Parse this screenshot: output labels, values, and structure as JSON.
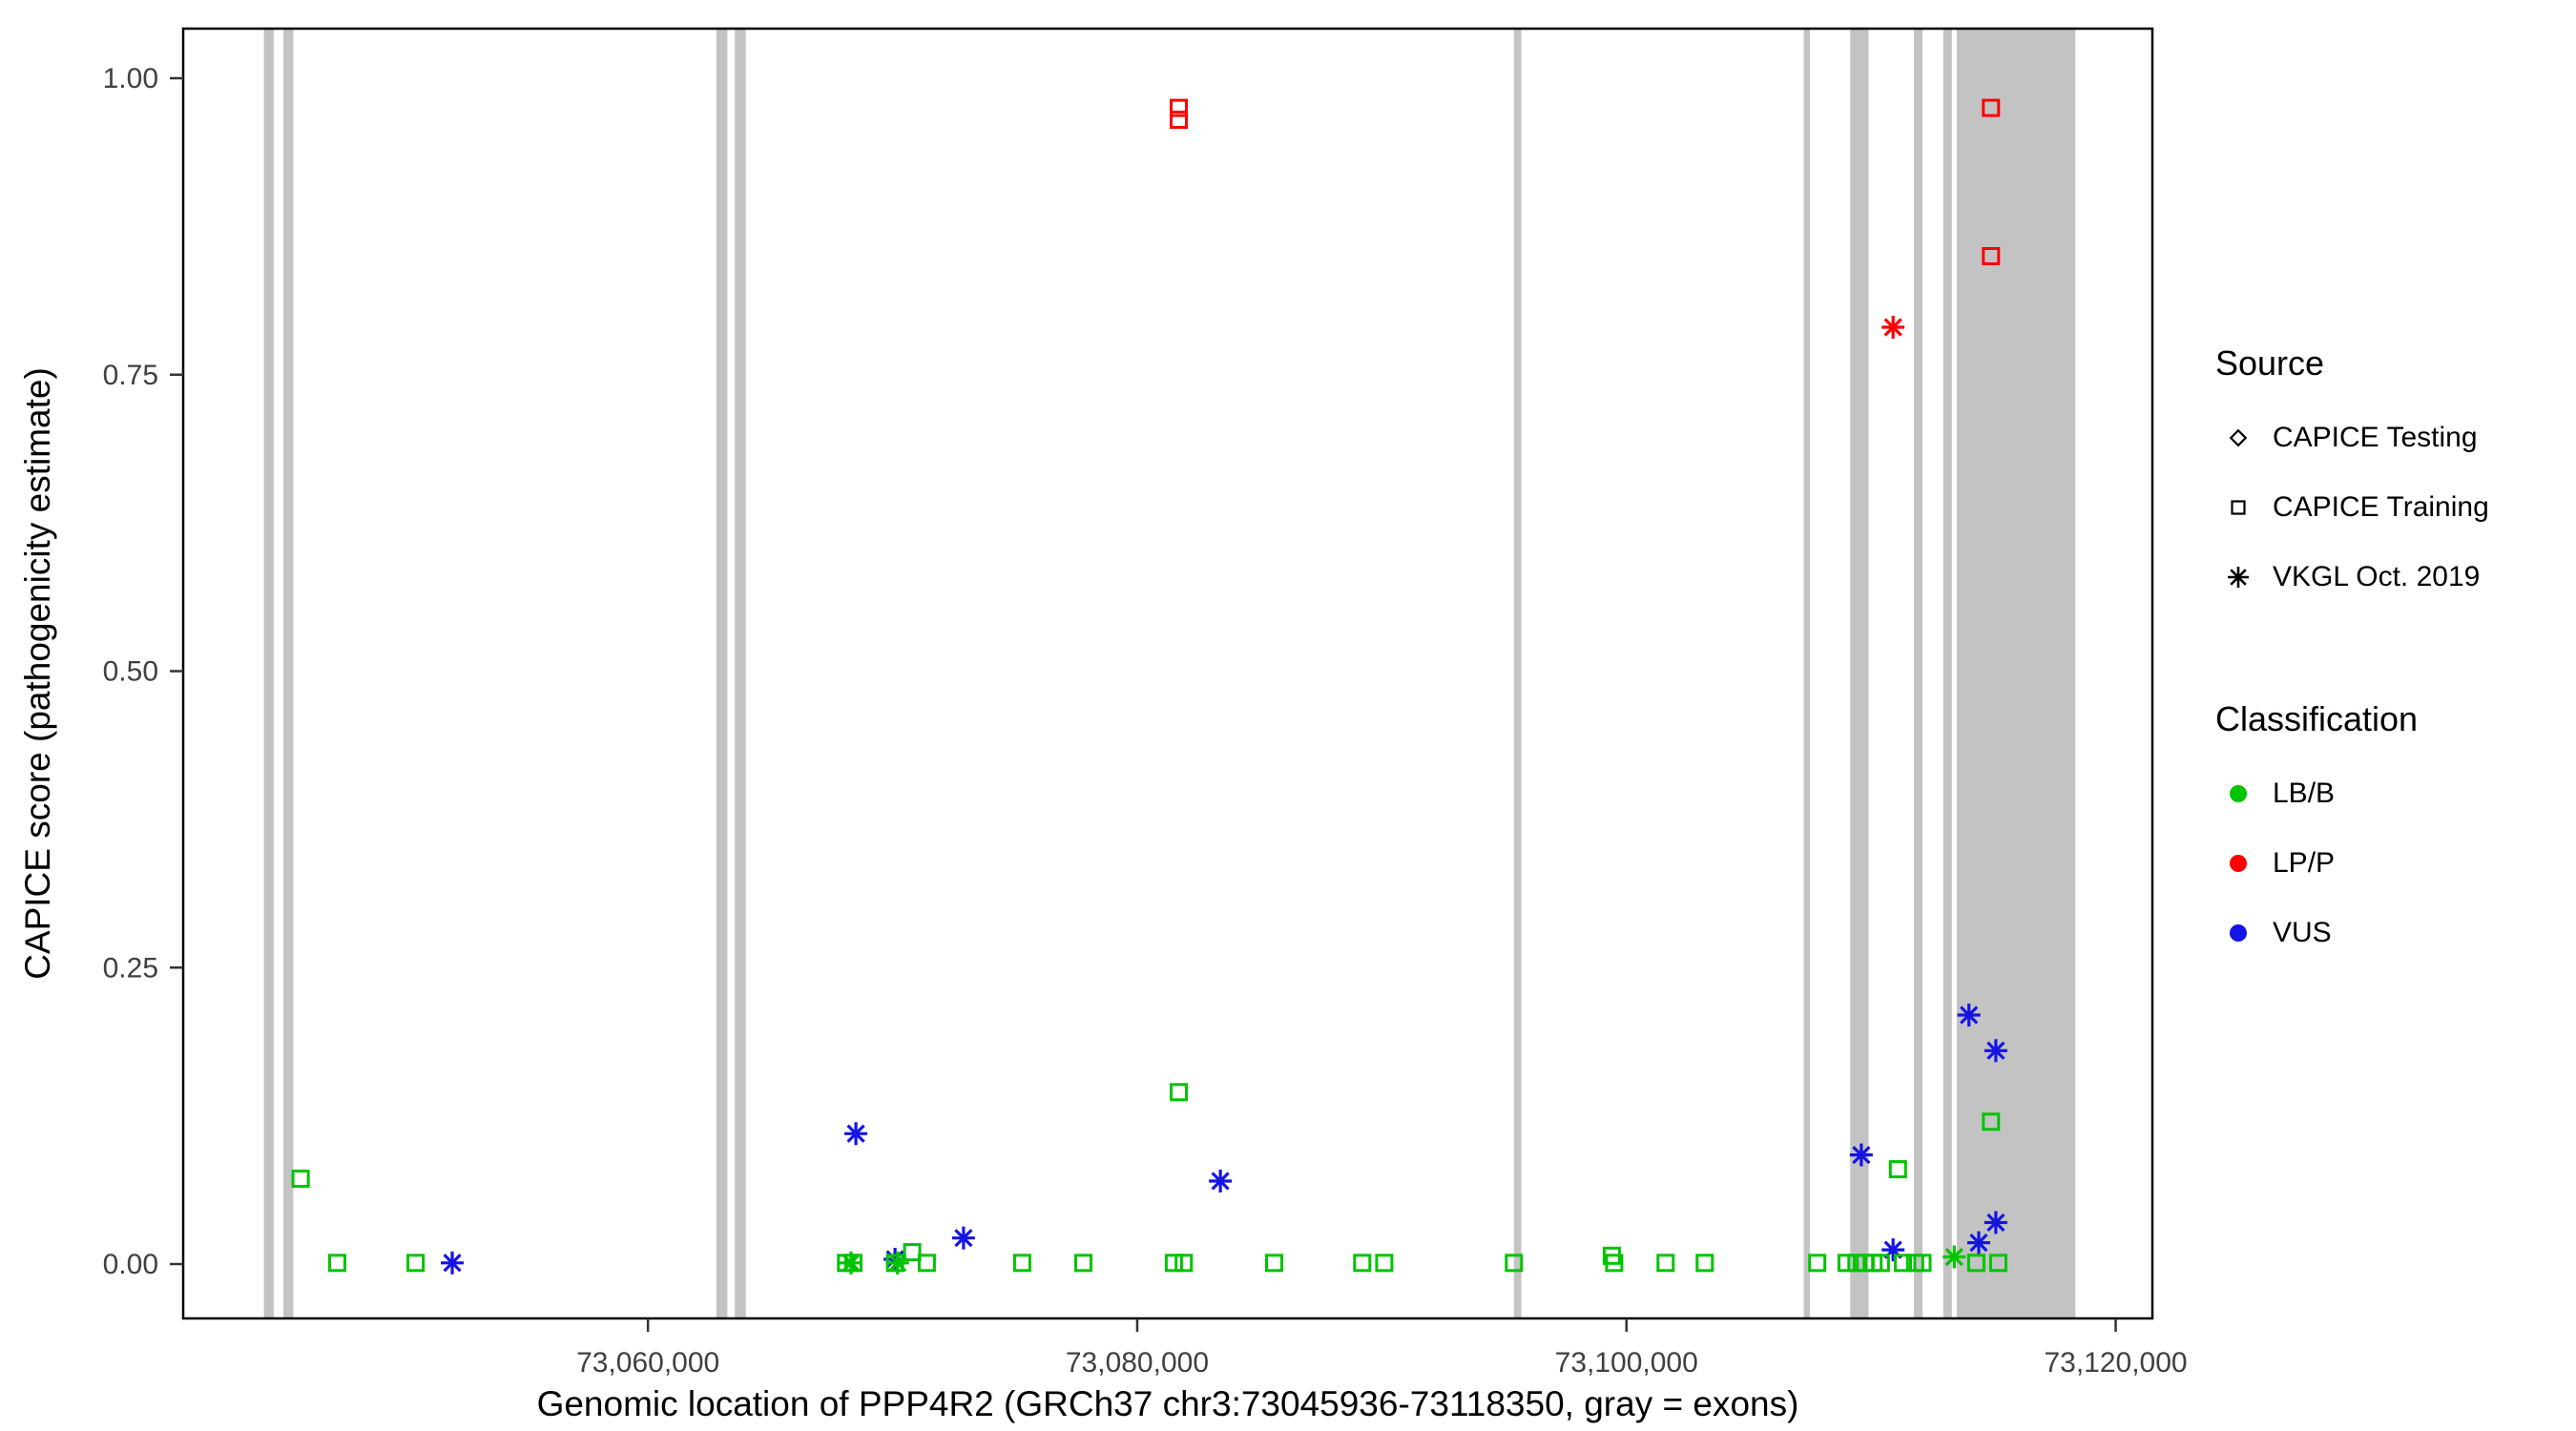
{
  "chart_data": {
    "type": "scatter",
    "title": "",
    "xlabel": "Genomic location of PPP4R2 (GRCh37 chr3:73045936-73118350, gray = exons)",
    "ylabel": "CAPICE score (pathogenicity estimate)",
    "xlim": [
      73041000,
      73121500
    ],
    "ylim": [
      0,
      1
    ],
    "grid": false,
    "panel_background": "#ffffff",
    "panel_border_color": "#000000",
    "exon_color": "#c3c3c3",
    "tick_label_color": "#404040",
    "xticks": {
      "values": [
        73060000,
        73080000,
        73100000,
        73120000
      ],
      "labels": [
        "73,060,000",
        "73,080,000",
        "73,100,000",
        "73,120,000"
      ]
    },
    "yticks": {
      "values": [
        0,
        0.25,
        0.5,
        0.75,
        1.0
      ],
      "labels": [
        "0.00",
        "0.25",
        "0.50",
        "0.75",
        "1.00"
      ]
    },
    "colors": {
      "LB/B": "#00c400",
      "LP/P": "#ff0000",
      "VUS": "#1414e6"
    },
    "exons": [
      [
        73044300,
        73044700
      ],
      [
        73045100,
        73045500
      ],
      [
        73062800,
        73063250
      ],
      [
        73063550,
        73064000
      ],
      [
        73095400,
        73095700
      ],
      [
        73107250,
        73107500
      ],
      [
        73109150,
        73109900
      ],
      [
        73111750,
        73112100
      ],
      [
        73112950,
        73113300
      ],
      [
        73113500,
        73118350
      ]
    ],
    "points": [
      {
        "x": 73081700,
        "y": 0.975,
        "source": "CAPICE Training",
        "class": "LP/P"
      },
      {
        "x": 73081700,
        "y": 0.965,
        "source": "CAPICE Training",
        "class": "LP/P"
      },
      {
        "x": 73114900,
        "y": 0.975,
        "source": "CAPICE Training",
        "class": "LP/P"
      },
      {
        "x": 73114900,
        "y": 0.85,
        "source": "CAPICE Training",
        "class": "LP/P"
      },
      {
        "x": 73110900,
        "y": 0.79,
        "source": "VKGL Oct. 2019",
        "class": "LP/P"
      },
      {
        "x": 73052000,
        "y": 0.001,
        "source": "VKGL Oct. 2019",
        "class": "VUS"
      },
      {
        "x": 73068500,
        "y": 0.11,
        "source": "VKGL Oct. 2019",
        "class": "VUS"
      },
      {
        "x": 73070100,
        "y": 0.004,
        "source": "VKGL Oct. 2019",
        "class": "VUS"
      },
      {
        "x": 73072900,
        "y": 0.022,
        "source": "VKGL Oct. 2019",
        "class": "VUS"
      },
      {
        "x": 73083400,
        "y": 0.07,
        "source": "VKGL Oct. 2019",
        "class": "VUS"
      },
      {
        "x": 73109600,
        "y": 0.092,
        "source": "VKGL Oct. 2019",
        "class": "VUS"
      },
      {
        "x": 73110900,
        "y": 0.012,
        "source": "VKGL Oct. 2019",
        "class": "VUS"
      },
      {
        "x": 73114000,
        "y": 0.21,
        "source": "VKGL Oct. 2019",
        "class": "VUS"
      },
      {
        "x": 73114400,
        "y": 0.018,
        "source": "VKGL Oct. 2019",
        "class": "VUS"
      },
      {
        "x": 73115100,
        "y": 0.18,
        "source": "VKGL Oct. 2019",
        "class": "VUS"
      },
      {
        "x": 73115100,
        "y": 0.035,
        "source": "VKGL Oct. 2019",
        "class": "VUS"
      },
      {
        "x": 73045800,
        "y": 0.072,
        "source": "CAPICE Training",
        "class": "LB/B"
      },
      {
        "x": 73047300,
        "y": 0.001,
        "source": "CAPICE Training",
        "class": "LB/B"
      },
      {
        "x": 73050500,
        "y": 0.001,
        "source": "CAPICE Training",
        "class": "LB/B"
      },
      {
        "x": 73068100,
        "y": 0.001,
        "source": "CAPICE Training",
        "class": "LB/B"
      },
      {
        "x": 73068400,
        "y": 0.001,
        "source": "CAPICE Training",
        "class": "LB/B"
      },
      {
        "x": 73070100,
        "y": 0.001,
        "source": "CAPICE Training",
        "class": "LB/B"
      },
      {
        "x": 73070800,
        "y": 0.01,
        "source": "CAPICE Training",
        "class": "LB/B"
      },
      {
        "x": 73071400,
        "y": 0.001,
        "source": "CAPICE Training",
        "class": "LB/B"
      },
      {
        "x": 73075300,
        "y": 0.001,
        "source": "CAPICE Training",
        "class": "LB/B"
      },
      {
        "x": 73077800,
        "y": 0.001,
        "source": "CAPICE Training",
        "class": "LB/B"
      },
      {
        "x": 73081500,
        "y": 0.001,
        "source": "CAPICE Training",
        "class": "LB/B"
      },
      {
        "x": 73081900,
        "y": 0.001,
        "source": "CAPICE Training",
        "class": "LB/B"
      },
      {
        "x": 73081700,
        "y": 0.145,
        "source": "CAPICE Training",
        "class": "LB/B"
      },
      {
        "x": 73085600,
        "y": 0.001,
        "source": "CAPICE Training",
        "class": "LB/B"
      },
      {
        "x": 73089200,
        "y": 0.001,
        "source": "CAPICE Training",
        "class": "LB/B"
      },
      {
        "x": 73090100,
        "y": 0.001,
        "source": "CAPICE Training",
        "class": "LB/B"
      },
      {
        "x": 73095400,
        "y": 0.001,
        "source": "CAPICE Training",
        "class": "LB/B"
      },
      {
        "x": 73099400,
        "y": 0.007,
        "source": "CAPICE Training",
        "class": "LB/B"
      },
      {
        "x": 73099500,
        "y": 0.001,
        "source": "CAPICE Training",
        "class": "LB/B"
      },
      {
        "x": 73101600,
        "y": 0.001,
        "source": "CAPICE Training",
        "class": "LB/B"
      },
      {
        "x": 73103200,
        "y": 0.001,
        "source": "CAPICE Training",
        "class": "LB/B"
      },
      {
        "x": 73107800,
        "y": 0.001,
        "source": "CAPICE Training",
        "class": "LB/B"
      },
      {
        "x": 73109000,
        "y": 0.001,
        "source": "CAPICE Training",
        "class": "LB/B"
      },
      {
        "x": 73109400,
        "y": 0.001,
        "source": "CAPICE Training",
        "class": "LB/B"
      },
      {
        "x": 73109750,
        "y": 0.001,
        "source": "CAPICE Training",
        "class": "LB/B"
      },
      {
        "x": 73110100,
        "y": 0.001,
        "source": "CAPICE Training",
        "class": "LB/B"
      },
      {
        "x": 73110400,
        "y": 0.001,
        "source": "CAPICE Training",
        "class": "LB/B"
      },
      {
        "x": 73111100,
        "y": 0.08,
        "source": "CAPICE Training",
        "class": "LB/B"
      },
      {
        "x": 73111300,
        "y": 0.001,
        "source": "CAPICE Training",
        "class": "LB/B"
      },
      {
        "x": 73111800,
        "y": 0.001,
        "source": "CAPICE Training",
        "class": "LB/B"
      },
      {
        "x": 73112100,
        "y": 0.001,
        "source": "CAPICE Training",
        "class": "LB/B"
      },
      {
        "x": 73114300,
        "y": 0.001,
        "source": "CAPICE Training",
        "class": "LB/B"
      },
      {
        "x": 73114900,
        "y": 0.12,
        "source": "CAPICE Training",
        "class": "LB/B"
      },
      {
        "x": 73115200,
        "y": 0.001,
        "source": "CAPICE Training",
        "class": "LB/B"
      },
      {
        "x": 73068300,
        "y": 0.001,
        "source": "VKGL Oct. 2019",
        "class": "LB/B"
      },
      {
        "x": 73070200,
        "y": 0.001,
        "source": "VKGL Oct. 2019",
        "class": "LB/B"
      },
      {
        "x": 73113400,
        "y": 0.006,
        "source": "VKGL Oct. 2019",
        "class": "LB/B"
      }
    ],
    "legend": {
      "position": "right",
      "source_title": "Source",
      "source_items": [
        {
          "shape": "diamond",
          "label": "CAPICE Testing"
        },
        {
          "shape": "square",
          "label": "CAPICE Training"
        },
        {
          "shape": "asterisk",
          "label": "VKGL Oct. 2019"
        }
      ],
      "classification_title": "Classification",
      "classification_items": [
        {
          "color_key": "LB/B",
          "label": "LB/B"
        },
        {
          "color_key": "LP/P",
          "label": "LP/P"
        },
        {
          "color_key": "VUS",
          "label": "VUS"
        }
      ]
    }
  }
}
